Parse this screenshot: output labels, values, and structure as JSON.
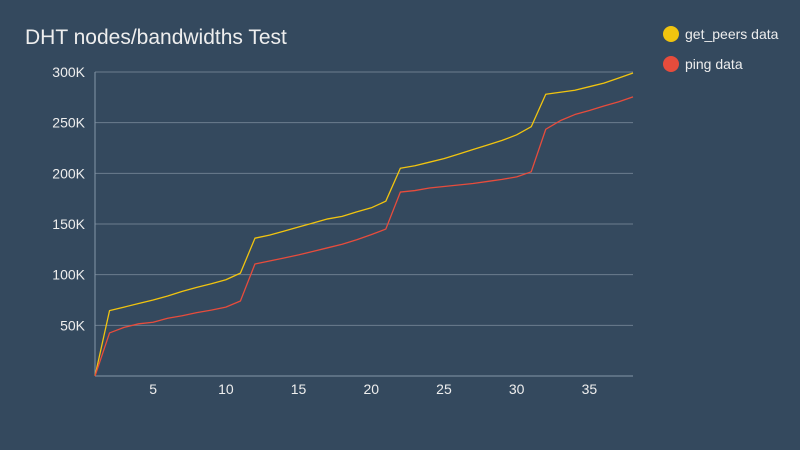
{
  "chart_data": {
    "type": "line",
    "title": "DHT nodes/bandwidths Test",
    "xlabel": "",
    "ylabel": "",
    "xlim": [
      1,
      38
    ],
    "ylim": [
      0,
      300000
    ],
    "y_ticks": [
      {
        "value": 50000,
        "label": "50K"
      },
      {
        "value": 100000,
        "label": "100K"
      },
      {
        "value": 150000,
        "label": "150K"
      },
      {
        "value": 200000,
        "label": "200K"
      },
      {
        "value": 250000,
        "label": "250K"
      },
      {
        "value": 300000,
        "label": "300K"
      }
    ],
    "x_ticks": [
      {
        "value": 5,
        "label": "5"
      },
      {
        "value": 10,
        "label": "10"
      },
      {
        "value": 15,
        "label": "15"
      },
      {
        "value": 20,
        "label": "20"
      },
      {
        "value": 25,
        "label": "25"
      },
      {
        "value": 30,
        "label": "30"
      },
      {
        "value": 35,
        "label": "35"
      }
    ],
    "grid": true,
    "legend_position": "top-right",
    "x": [
      1,
      2,
      3,
      4,
      5,
      6,
      7,
      8,
      9,
      10,
      11,
      12,
      13,
      14,
      15,
      16,
      17,
      18,
      19,
      20,
      21,
      22,
      23,
      24,
      25,
      26,
      27,
      28,
      29,
      30,
      31,
      32,
      33,
      34,
      35,
      36,
      37,
      38
    ],
    "series": [
      {
        "name": "get_peers data",
        "color": "#f1c40f",
        "values": [
          0,
          64500,
          68000,
          71500,
          75000,
          79000,
          83500,
          87500,
          91000,
          95000,
          101500,
          136000,
          139000,
          143000,
          147000,
          151000,
          155000,
          157500,
          162000,
          166000,
          172500,
          205000,
          207500,
          211000,
          214500,
          219000,
          223500,
          228000,
          232500,
          238000,
          246000,
          278000,
          280000,
          282000,
          285500,
          289000,
          294000,
          299000
        ]
      },
      {
        "name": "ping data",
        "color": "#e74c3c",
        "values": [
          0,
          42500,
          48000,
          51500,
          53000,
          57000,
          59500,
          62500,
          65000,
          68000,
          74000,
          110500,
          113500,
          116500,
          119500,
          123000,
          126500,
          130000,
          134500,
          139500,
          145000,
          181500,
          183000,
          185500,
          187000,
          188500,
          190000,
          192000,
          194000,
          196500,
          201500,
          243500,
          252000,
          258000,
          262000,
          266500,
          270500,
          275500
        ]
      }
    ]
  }
}
